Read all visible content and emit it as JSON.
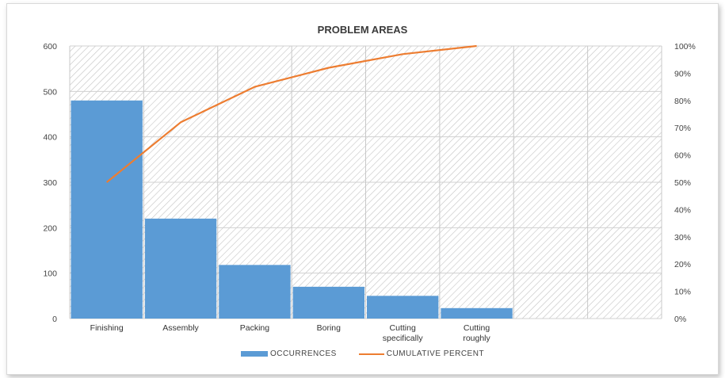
{
  "chart_data": {
    "type": "bar",
    "title": "PROBLEM AREAS",
    "categories": [
      "Finishing",
      "Assembly",
      "Packing",
      "Boring",
      "Cutting specifically",
      "Cutting roughly",
      "",
      ""
    ],
    "series": [
      {
        "name": "OCCURRENCES",
        "type": "bar",
        "axis": "left",
        "color": "#5b9bd5",
        "values": [
          480,
          220,
          118,
          70,
          50,
          23,
          null,
          null
        ]
      },
      {
        "name": "CUMULATIVE PERCENT",
        "type": "line",
        "axis": "right",
        "color": "#ed7d31",
        "values": [
          50,
          72,
          85,
          92,
          97,
          100,
          null,
          null
        ]
      }
    ],
    "y_left": {
      "ylim": [
        0,
        600
      ],
      "ticks": [
        0,
        100,
        200,
        300,
        400,
        500,
        600
      ],
      "tick_labels": [
        "0",
        "100",
        "200",
        "300",
        "400",
        "500",
        "600"
      ]
    },
    "y_right": {
      "ylim": [
        0,
        100
      ],
      "ticks": [
        0,
        10,
        20,
        30,
        40,
        50,
        60,
        70,
        80,
        90,
        100
      ],
      "tick_labels": [
        "0%",
        "10%",
        "20%",
        "30%",
        "40%",
        "50%",
        "60%",
        "70%",
        "80%",
        "90%",
        "100%"
      ]
    },
    "grid": true,
    "legend_position": "bottom"
  }
}
